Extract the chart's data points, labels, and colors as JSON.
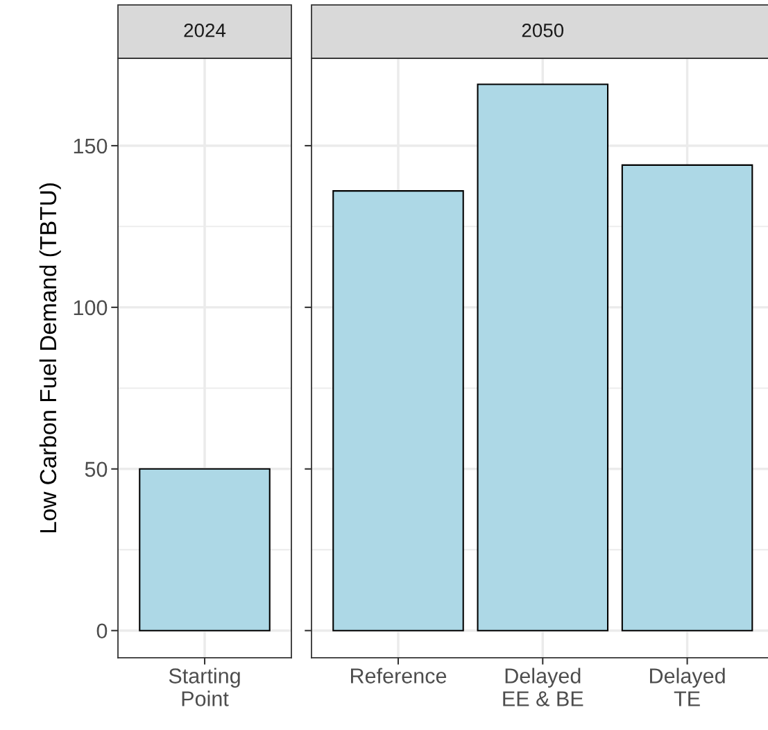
{
  "chart_data": [
    {
      "type": "bar",
      "title": "2024",
      "ylabel": "Low Carbon Fuel Demand (TBTU)",
      "categories": [
        "Starting\nPoint"
      ],
      "values": [
        50
      ],
      "color": "#add8e6",
      "ylim": [
        -8.4,
        177
      ],
      "yticks": [
        0,
        50,
        100,
        150
      ],
      "grid": true
    },
    {
      "type": "bar",
      "title": "2050",
      "categories": [
        "Reference",
        "Delayed\nEE & BE",
        "Delayed\nTE"
      ],
      "values": [
        136,
        169,
        144
      ],
      "color": "#add8e6",
      "ylim": [
        -8.4,
        177
      ],
      "yticks": [
        0,
        50,
        100,
        150
      ],
      "grid": true,
      "tick_labels": "x"
    }
  ]
}
